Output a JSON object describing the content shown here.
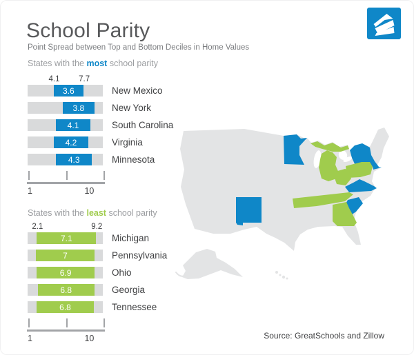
{
  "logo": {
    "brand": "Zillow"
  },
  "header": {
    "title": "School Parity",
    "subtitle": "Point Spread between Top and Bottom Deciles in Home Values"
  },
  "colors": {
    "blue": "#0f87c8",
    "green": "#a0cc4d",
    "track_gray": "#d9dadb",
    "map_gray": "#e3e4e5",
    "title_gray": "#58595b",
    "text_dark": "#3f4042",
    "text_mid": "#7b7d80",
    "section_gray": "#9b9da0",
    "axis_gray": "#a2a4a7"
  },
  "chart_data": [
    {
      "type": "bar",
      "title_parts": [
        "States with the ",
        "most",
        " school parity"
      ],
      "highlight_color_key": "blue",
      "scale": {
        "min": 1,
        "max": 10,
        "tick_labels": [
          "1",
          "10"
        ]
      },
      "annotations": [
        4.1,
        7.7
      ],
      "rows": [
        {
          "state": "New Mexico",
          "label": "3.6",
          "range": [
            4.1,
            7.7
          ]
        },
        {
          "state": "New York",
          "label": "3.8",
          "range": [
            5.2,
            9.0
          ]
        },
        {
          "state": "South Carolina",
          "label": "4.1",
          "range": [
            4.4,
            8.5
          ]
        },
        {
          "state": "Virginia",
          "label": "4.2",
          "range": [
            4.1,
            8.3
          ]
        },
        {
          "state": "Minnesota",
          "label": "4.3",
          "range": [
            4.4,
            8.7
          ]
        }
      ]
    },
    {
      "type": "bar",
      "title_parts": [
        "States with the ",
        "least",
        " school parity"
      ],
      "highlight_color_key": "green",
      "scale": {
        "min": 1,
        "max": 10,
        "tick_labels": [
          "1",
          "10"
        ]
      },
      "annotations": [
        2.1,
        9.2
      ],
      "rows": [
        {
          "state": "Michigan",
          "label": "7.1",
          "range": [
            2.1,
            9.2
          ]
        },
        {
          "state": "Pennsylvania",
          "label": "7",
          "range": [
            2.0,
            9.0
          ]
        },
        {
          "state": "Ohio",
          "label": "6.9",
          "range": [
            2.1,
            9.0
          ]
        },
        {
          "state": "Georgia",
          "label": "6.8",
          "range": [
            2.2,
            9.0
          ]
        },
        {
          "state": "Tennessee",
          "label": "6.8",
          "range": [
            2.1,
            8.9
          ]
        }
      ]
    }
  ],
  "map": {
    "highlighted_states": [
      {
        "name": "Minnesota",
        "color_key": "blue"
      },
      {
        "name": "New York",
        "color_key": "blue"
      },
      {
        "name": "New Mexico",
        "color_key": "blue"
      },
      {
        "name": "Virginia",
        "color_key": "blue"
      },
      {
        "name": "South Carolina",
        "color_key": "blue"
      },
      {
        "name": "Michigan",
        "color_key": "green"
      },
      {
        "name": "Pennsylvania",
        "color_key": "green"
      },
      {
        "name": "Ohio",
        "color_key": "green"
      },
      {
        "name": "Georgia",
        "color_key": "green"
      },
      {
        "name": "Tennessee",
        "color_key": "green"
      }
    ]
  },
  "footer": {
    "source": "Source: GreatSchools and Zillow"
  }
}
